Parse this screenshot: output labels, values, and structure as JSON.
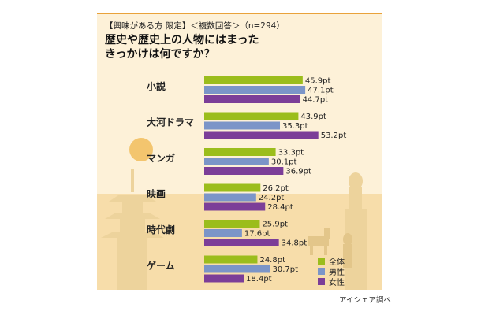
{
  "header": {
    "subtitle": "【興味がある方 限定】＜複数回答＞（n=294）",
    "title_line1": "歴史や歴史上の人物にはまった",
    "title_line2": "きっかけは何ですか？"
  },
  "source": "アイシェア調べ",
  "colors": {
    "all": "#9bbd1c",
    "male": "#7b95c8",
    "female": "#7c3e98",
    "background": "#fdf1d8",
    "ground": "#f7ddaa",
    "silhouette": "#edd39c",
    "accent_line": "#e9a23b"
  },
  "chart_data": {
    "type": "bar",
    "orientation": "horizontal",
    "unit": "pt",
    "categories": [
      "小説",
      "大河ドラマ",
      "マンガ",
      "映画",
      "時代劇",
      "ゲーム"
    ],
    "series": [
      {
        "name": "全体",
        "values": [
          45.9,
          43.9,
          33.3,
          26.2,
          25.9,
          24.8
        ]
      },
      {
        "name": "男性",
        "values": [
          47.1,
          35.3,
          30.1,
          24.2,
          17.6,
          30.7
        ]
      },
      {
        "name": "女性",
        "values": [
          44.7,
          53.2,
          36.9,
          28.4,
          34.8,
          18.4
        ]
      }
    ],
    "legend_position": "bottom-right",
    "grid": false
  }
}
